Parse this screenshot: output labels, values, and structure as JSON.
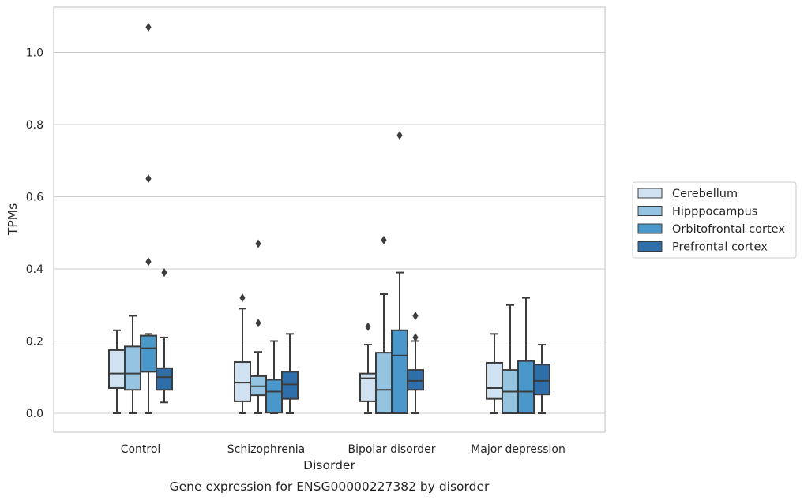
{
  "chart_data": {
    "type": "box",
    "caption": "Gene expression for ENSG00000227382 by disorder",
    "xlabel": "Disorder",
    "ylabel": "TPMs",
    "ylim": [
      -0.05,
      1.13
    ],
    "yticks": [
      0.0,
      0.2,
      0.4,
      0.6,
      0.8,
      1.0
    ],
    "ytick_labels": [
      "0.0",
      "0.2",
      "0.4",
      "0.6",
      "0.8",
      "1.0"
    ],
    "grid": "horizontal",
    "legend_position": "right",
    "categories": [
      "Control",
      "Schizophrenia",
      "Bipolar disorder",
      "Major depression"
    ],
    "series": [
      {
        "name": "Cerebellum",
        "color": "#d0e1f2",
        "boxes": [
          {
            "whislo": 0.0,
            "q1": 0.07,
            "med": 0.11,
            "q3": 0.175,
            "whishi": 0.23,
            "fliers": []
          },
          {
            "whislo": 0.0,
            "q1": 0.033,
            "med": 0.085,
            "q3": 0.142,
            "whishi": 0.29,
            "fliers": [
              0.32
            ]
          },
          {
            "whislo": 0.0,
            "q1": 0.033,
            "med": 0.097,
            "q3": 0.11,
            "whishi": 0.19,
            "fliers": [
              0.24
            ]
          },
          {
            "whislo": 0.0,
            "q1": 0.04,
            "med": 0.07,
            "q3": 0.14,
            "whishi": 0.22,
            "fliers": []
          }
        ]
      },
      {
        "name": "Hipppocampus",
        "color": "#94c4df",
        "boxes": [
          {
            "whislo": 0.0,
            "q1": 0.065,
            "med": 0.11,
            "q3": 0.185,
            "whishi": 0.27,
            "fliers": []
          },
          {
            "whislo": 0.0,
            "q1": 0.05,
            "med": 0.075,
            "q3": 0.103,
            "whishi": 0.17,
            "fliers": [
              0.25,
              0.47
            ]
          },
          {
            "whislo": 0.0,
            "q1": 0.0,
            "med": 0.065,
            "q3": 0.168,
            "whishi": 0.33,
            "fliers": [
              0.48
            ]
          },
          {
            "whislo": 0.0,
            "q1": 0.0,
            "med": 0.06,
            "q3": 0.12,
            "whishi": 0.3,
            "fliers": []
          }
        ]
      },
      {
        "name": "Orbitofrontal cortex",
        "color": "#4a98c9",
        "boxes": [
          {
            "whislo": 0.0,
            "q1": 0.115,
            "med": 0.18,
            "q3": 0.215,
            "whishi": 0.22,
            "fliers": [
              0.42,
              0.65,
              1.07
            ]
          },
          {
            "whislo": 0.0,
            "q1": 0.002,
            "med": 0.06,
            "q3": 0.093,
            "whishi": 0.2,
            "fliers": []
          },
          {
            "whislo": 0.0,
            "q1": 0.0,
            "med": 0.16,
            "q3": 0.23,
            "whishi": 0.39,
            "fliers": [
              0.77
            ]
          },
          {
            "whislo": 0.0,
            "q1": 0.0,
            "med": 0.06,
            "q3": 0.145,
            "whishi": 0.32,
            "fliers": []
          }
        ]
      },
      {
        "name": "Prefrontal cortex",
        "color": "#2e6fab",
        "boxes": [
          {
            "whislo": 0.03,
            "q1": 0.065,
            "med": 0.1,
            "q3": 0.125,
            "whishi": 0.21,
            "fliers": [
              0.39
            ]
          },
          {
            "whislo": 0.0,
            "q1": 0.04,
            "med": 0.08,
            "q3": 0.115,
            "whishi": 0.22,
            "fliers": []
          },
          {
            "whislo": 0.0,
            "q1": 0.065,
            "med": 0.09,
            "q3": 0.12,
            "whishi": 0.2,
            "fliers": [
              0.21,
              0.27
            ]
          },
          {
            "whislo": 0.0,
            "q1": 0.052,
            "med": 0.09,
            "q3": 0.135,
            "whishi": 0.19,
            "fliers": []
          }
        ]
      }
    ]
  }
}
